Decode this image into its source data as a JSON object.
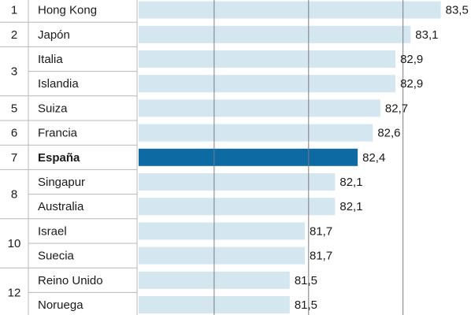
{
  "chart_data": {
    "type": "bar",
    "orientation": "horizontal",
    "title": "",
    "xlabel": "",
    "ylabel": "",
    "xlim": [
      79.5,
      83.9
    ],
    "grid": true,
    "gridlines_x": [
      80.5,
      81.75,
      83.0
    ],
    "legend": "none",
    "colors": {
      "bar": "#d4e6f0",
      "bar_highlight": "#0e6aa3",
      "grid": "#7c7c7c",
      "row_border": "#b8b8b8",
      "text": "#1a1a1a"
    },
    "ranks": [
      {
        "label": "1",
        "rows": 1
      },
      {
        "label": "2",
        "rows": 1
      },
      {
        "label": "3",
        "rows": 2
      },
      {
        "label": "5",
        "rows": 1
      },
      {
        "label": "6",
        "rows": 1
      },
      {
        "label": "7",
        "rows": 1
      },
      {
        "label": "8",
        "rows": 2
      },
      {
        "label": "10",
        "rows": 2
      },
      {
        "label": "12",
        "rows": 2
      }
    ],
    "rows": [
      {
        "country": "Hong Kong",
        "value": 83.5,
        "label": "83,5"
      },
      {
        "country": "Japón",
        "value": 83.1,
        "label": "83,1"
      },
      {
        "country": "Italia",
        "value": 82.9,
        "label": "82,9"
      },
      {
        "country": "Islandia",
        "value": 82.9,
        "label": "82,9"
      },
      {
        "country": "Suiza",
        "value": 82.7,
        "label": "82,7"
      },
      {
        "country": "Francia",
        "value": 82.6,
        "label": "82,6"
      },
      {
        "country": "España",
        "value": 82.4,
        "label": "82,4",
        "highlight": true
      },
      {
        "country": "Singapur",
        "value": 82.1,
        "label": "82,1"
      },
      {
        "country": "Australia",
        "value": 82.1,
        "label": "82,1"
      },
      {
        "country": "Israel",
        "value": 81.7,
        "label": "81,7"
      },
      {
        "country": "Suecia",
        "value": 81.7,
        "label": "81,7"
      },
      {
        "country": "Reino Unido",
        "value": 81.5,
        "label": "81,5"
      },
      {
        "country": "Noruega",
        "value": 81.5,
        "label": "81,5"
      }
    ]
  }
}
